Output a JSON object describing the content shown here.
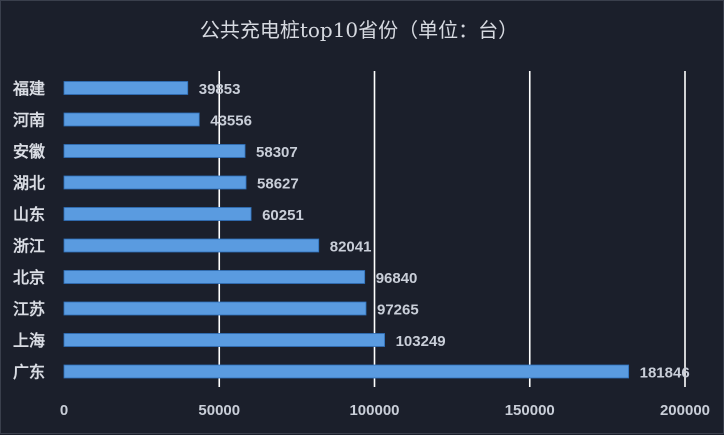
{
  "chart_data": {
    "type": "bar",
    "orientation": "horizontal",
    "title": "公共充电桩top10省份（单位：台）",
    "categories": [
      "福建",
      "河南",
      "安徽",
      "湖北",
      "山东",
      "浙江",
      "北京",
      "江苏",
      "上海",
      "广东"
    ],
    "values": [
      39853,
      43556,
      58307,
      58627,
      60251,
      82041,
      96840,
      97265,
      103249,
      181846
    ],
    "value_labels": [
      "39853",
      "43556",
      "58307",
      "58627",
      "60251",
      "82041",
      "96840",
      "97265",
      "103249",
      "181846"
    ],
    "xticks": [
      "0",
      "50000",
      "100000",
      "150000",
      "200000"
    ],
    "xlim": [
      0,
      200000
    ],
    "grid": true,
    "colors": {
      "background": "#1b1f2b",
      "bar": "#5a9be0",
      "gridline": "#ffffff",
      "text": "#c9ced8"
    }
  }
}
